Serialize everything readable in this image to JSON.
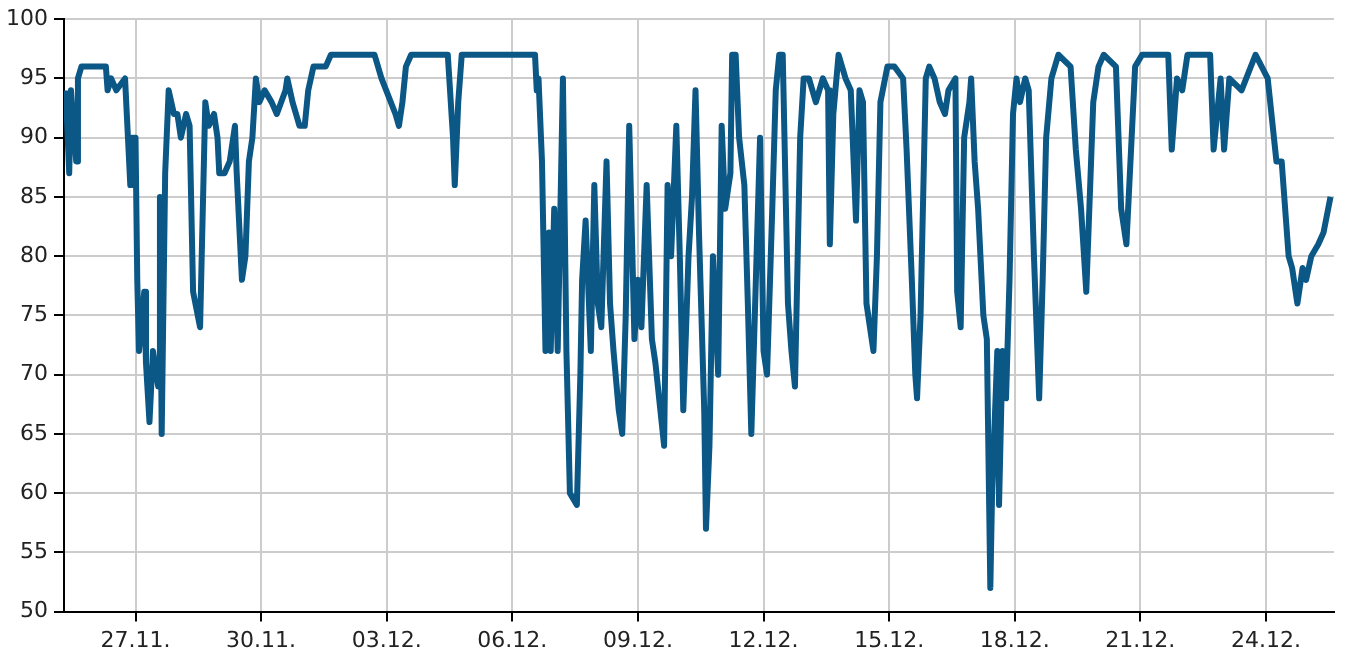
{
  "chart_data": {
    "type": "line",
    "x": [
      "--11-25T08:00",
      "--11-25T10:00",
      "--11-25T11:00",
      "--11-25T14:00",
      "--11-25T15:00",
      "--11-25T17:00",
      "--11-26T07:00",
      "--11-26T08:00",
      "--11-26T10:00",
      "--11-26T13:00",
      "--11-26T18:00",
      "--11-26T19:00",
      "--11-26T21:00",
      "--11-26T22:00",
      "--11-26T23:00",
      "--11-27T00:00",
      "--11-27T01:00",
      "--11-27T02:00",
      "--11-27T05:00",
      "--11-27T06:00",
      "--11-27T08:00",
      "--11-27T10:00",
      "--11-27T13:00",
      "--11-27T14:00",
      "--11-27T15:00",
      "--11-27T17:00",
      "--11-27T19:00",
      "--11-27T22:00",
      "--11-28T00:00",
      "--11-28T02:00",
      "--11-28T05:00",
      "--11-28T07:00",
      "--11-28T09:00",
      "--11-28T13:00",
      "--11-28T16:00",
      "--11-28T18:00",
      "--11-28T21:00",
      "--11-28T23:00",
      "--11-29T00:00",
      "--11-29T03:00",
      "--11-29T06:00",
      "--11-29T09:00",
      "--11-29T10:00",
      "--11-29T13:00",
      "--11-29T15:00",
      "--11-29T17:00",
      "--11-29T19:00",
      "--11-29T21:00",
      "--11-29T23:00",
      "--11-30T02:00",
      "--11-30T06:00",
      "--11-30T09:00",
      "--11-30T14:00",
      "--11-30T15:00",
      "--11-30T18:00",
      "--11-30T22:00",
      "--12-01T01:00",
      "--12-01T03:00",
      "--12-01T06:00",
      "--12-01T13:00",
      "--12-01T16:00",
      "--12-02T17:00",
      "--12-02T21:00",
      "--12-03T05:00",
      "--12-03T07:00",
      "--12-03T09:00",
      "--12-03T11:00",
      "--12-03T14:00",
      "--12-04T11:00",
      "--12-04T14:00",
      "--12-04T15:00",
      "--12-04T17:00",
      "--12-04T19:00",
      "--12-06T13:00",
      "--12-06T14:00",
      "--12-06T15:00",
      "--12-06T17:00",
      "--12-06T19:00",
      "--12-06T21:00",
      "--12-06T22:00",
      "--12-07T00:00",
      "--12-07T02:00",
      "--12-07T05:00",
      "--12-07T07:00",
      "--12-07T09:00",
      "--12-07T13:00",
      "--12-07T15:00",
      "--12-07T16:00",
      "--12-07T18:00",
      "--12-07T21:00",
      "--12-07T23:00",
      "--12-08T01:00",
      "--12-08T03:00",
      "--12-08T06:00",
      "--12-08T08:00",
      "--12-08T10:00",
      "--12-08T13:00",
      "--12-08T15:00",
      "--12-08T17:00",
      "--12-08T19:00",
      "--12-08T22:00",
      "--12-09T00:00",
      "--12-09T02:00",
      "--12-09T05:00",
      "--12-09T08:00",
      "--12-09T10:00",
      "--12-09T15:00",
      "--12-09T17:00",
      "--12-09T19:00",
      "--12-09T22:00",
      "--12-10T00:00",
      "--12-10T02:00",
      "--12-10T05:00",
      "--12-10T07:00",
      "--12-10T09:00",
      "--12-10T11:00",
      "--12-10T14:00",
      "--12-10T15:00",
      "--12-10T17:00",
      "--12-10T19:00",
      "--12-10T22:00",
      "--12-11T00:00",
      "--12-11T02:00",
      "--12-11T05:00",
      "--12-11T06:00",
      "--12-11T08:00",
      "--12-11T10:00",
      "--12-11T13:00",
      "--12-11T15:00",
      "--12-11T17:00",
      "--12-11T19:00",
      "--12-11T22:00",
      "--12-12T00:00",
      "--12-12T02:00",
      "--12-12T05:00",
      "--12-12T07:00",
      "--12-12T09:00",
      "--12-12T11:00",
      "--12-12T14:00",
      "--12-12T16:00",
      "--12-12T18:00",
      "--12-12T21:00",
      "--12-12T23:00",
      "--12-13T02:00",
      "--12-13T06:00",
      "--12-13T10:00",
      "--12-13T13:00",
      "--12-13T14:00",
      "--12-13T16:00",
      "--12-13T19:00",
      "--12-13T23:00",
      "--12-14T02:00",
      "--12-14T05:00",
      "--12-14T07:00",
      "--12-14T09:00",
      "--12-14T11:00",
      "--12-14T15:00",
      "--12-14T17:00",
      "--12-14T19:00",
      "--12-14T23:00",
      "--12-15T03:00",
      "--12-15T08:00",
      "--12-15T10:00",
      "--12-15T13:00",
      "--12-15T15:00",
      "--12-15T16:00",
      "--12-15T18:00",
      "--12-15T21:00",
      "--12-15T23:00",
      "--12-16T02:00",
      "--12-16T05:00",
      "--12-16T08:00",
      "--12-16T10:00",
      "--12-16T14:00",
      "--12-16T15:00",
      "--12-16T17:00",
      "--12-16T19:00",
      "--12-16T22:00",
      "--12-16T23:00",
      "--12-17T01:00",
      "--12-17T03:00",
      "--12-17T06:00",
      "--12-17T08:00",
      "--12-17T10:00",
      "--12-17T11:00",
      "--12-17T14:00",
      "--12-17T15:00",
      "--12-17T17:00",
      "--12-17T19:00",
      "--12-17T21:00",
      "--12-17T23:00",
      "--12-18T01:00",
      "--12-18T03:00",
      "--12-18T06:00",
      "--12-18T08:00",
      "--12-18T11:00",
      "--12-18T14:00",
      "--12-18T16:00",
      "--12-18T18:00",
      "--12-18T21:00",
      "--12-19T01:00",
      "--12-19T08:00",
      "--12-19T11:00",
      "--12-19T14:00",
      "--12-19T17:00",
      "--12-19T21:00",
      "--12-20T00:00",
      "--12-20T03:00",
      "--12-20T10:00",
      "--12-20T13:00",
      "--12-20T16:00",
      "--12-20T18:00",
      "--12-20T21:00",
      "--12-21T01:00",
      "--12-21T16:00",
      "--12-21T18:00",
      "--12-21T21:00",
      "--12-22T00:00",
      "--12-22T03:00",
      "--12-22T16:00",
      "--12-22T18:00",
      "--12-22T22:00",
      "--12-23T00:00",
      "--12-23T03:00",
      "--12-23T10:00",
      "--12-23T18:00",
      "--12-24T01:00",
      "--12-24T06:00",
      "--12-24T09:00",
      "--12-24T13:00",
      "--12-24T15:00",
      "--12-24T18:00",
      "--12-24T21:00",
      "--12-24T23:00",
      "--12-25T02:00",
      "--12-25T06:00",
      "--12-25T09:00",
      "--12-25T13:00"
    ],
    "series": [
      {
        "color": "#0b5786",
        "values": [
          94,
          87,
          94,
          88,
          95,
          96,
          96,
          94,
          95,
          94,
          95,
          92,
          86,
          90,
          86,
          90,
          78,
          72,
          77,
          71,
          66,
          72,
          69,
          85,
          65,
          87,
          94,
          92,
          92,
          90,
          92,
          91,
          77,
          74,
          93,
          91,
          92,
          90,
          87,
          87,
          88,
          91,
          87,
          78,
          80,
          88,
          90,
          95,
          93,
          94,
          93,
          92,
          94,
          95,
          93,
          91,
          91,
          94,
          96,
          96,
          97,
          97,
          95,
          92,
          91,
          93,
          96,
          97,
          97,
          90,
          86,
          93,
          97,
          97,
          94,
          95,
          88,
          72,
          82,
          72,
          84,
          72,
          95,
          72,
          60,
          59,
          70,
          78,
          83,
          72,
          86,
          76,
          74,
          88,
          76,
          72,
          67,
          65,
          75,
          91,
          73,
          78,
          74,
          86,
          73,
          71,
          64,
          86,
          80,
          91,
          80,
          67,
          80,
          85,
          94,
          82,
          67,
          57,
          64,
          80,
          70,
          91,
          84,
          87,
          97,
          97,
          90,
          86,
          76,
          65,
          75,
          90,
          72,
          70,
          84,
          94,
          97,
          97,
          76,
          72,
          69,
          90,
          95,
          95,
          93,
          95,
          94,
          81,
          92,
          97,
          95,
          94,
          83,
          94,
          93,
          76,
          72,
          80,
          93,
          96,
          96,
          95,
          89,
          78,
          70,
          68,
          75,
          95,
          96,
          95,
          93,
          92,
          94,
          95,
          77,
          74,
          90,
          93,
          95,
          88,
          84,
          75,
          73,
          52,
          60,
          72,
          59,
          72,
          68,
          78,
          92,
          95,
          93,
          95,
          94,
          80,
          68,
          78,
          90,
          95,
          97,
          96,
          89,
          84,
          77,
          93,
          96,
          97,
          96,
          84,
          81,
          87,
          96,
          97,
          97,
          89,
          95,
          94,
          97,
          97,
          89,
          95,
          89,
          95,
          94,
          97,
          95,
          88,
          88,
          80,
          79,
          76,
          79,
          78,
          80,
          81,
          82,
          85
        ]
      }
    ],
    "xlim": [
      "--11-25T07:00",
      "--12-25T15:00"
    ],
    "xticks": [
      {
        "value": "--11-27",
        "label": "27.11."
      },
      {
        "value": "--11-30",
        "label": "30.11."
      },
      {
        "value": "--12-03",
        "label": "03.12."
      },
      {
        "value": "--12-06",
        "label": "06.12."
      },
      {
        "value": "--12-09",
        "label": "09.12."
      },
      {
        "value": "--12-12",
        "label": "12.12."
      },
      {
        "value": "--12-15",
        "label": "15.12."
      },
      {
        "value": "--12-18",
        "label": "18.12."
      },
      {
        "value": "--12-21",
        "label": "21.12."
      },
      {
        "value": "--12-24",
        "label": "24.12."
      }
    ],
    "ylim": [
      50,
      100
    ],
    "yticks": [
      50,
      55,
      60,
      65,
      70,
      75,
      80,
      85,
      90,
      95,
      100
    ],
    "grid": true,
    "marker": "none",
    "line_style": "solid"
  }
}
